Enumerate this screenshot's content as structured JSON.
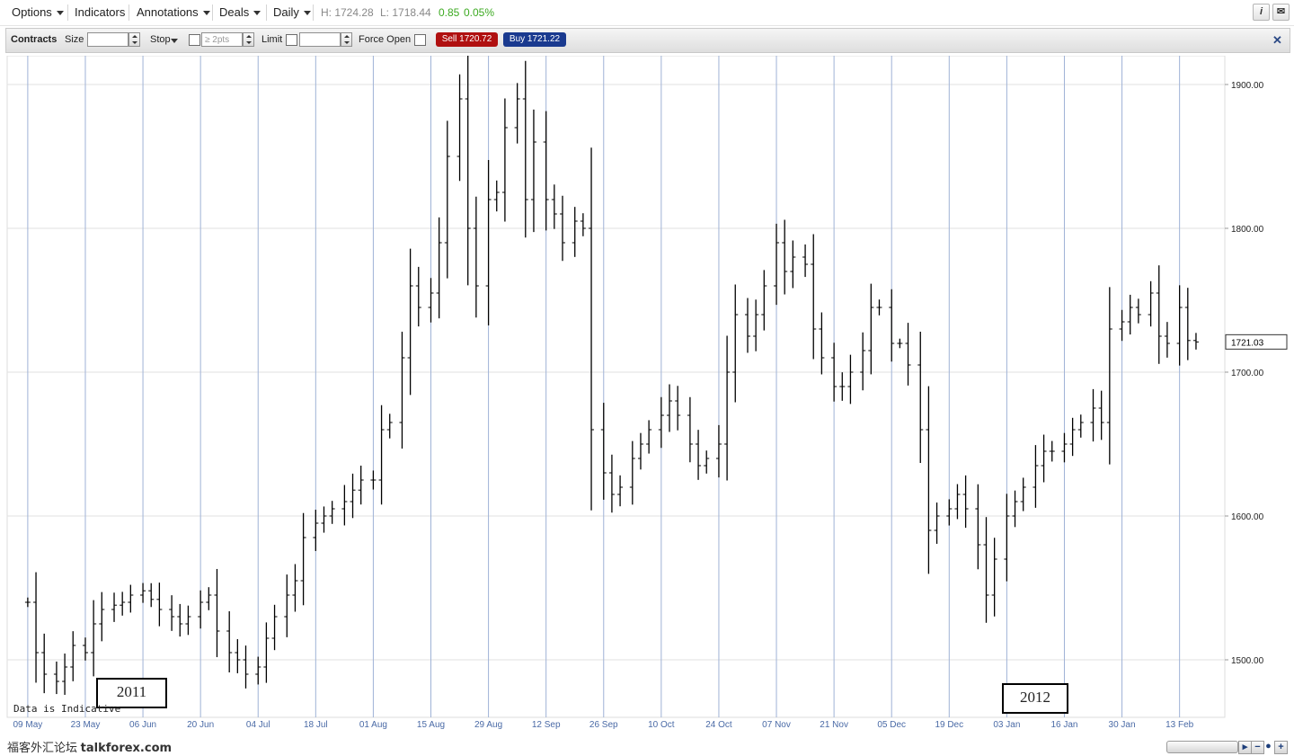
{
  "menubar": {
    "options": "Options",
    "indicators": "Indicators",
    "annotations": "Annotations",
    "deals": "Deals",
    "period": "Daily",
    "high": "H: 1724.28",
    "low": "L: 1718.44",
    "change": "0.85",
    "change_pct": "0.05%"
  },
  "toolbar": {
    "contracts": "Contracts",
    "size": "Size",
    "stop": "Stop",
    "stop_placeholder": "≥ 2pts",
    "limit": "Limit",
    "force_open": "Force Open",
    "sell": "Sell 1720.72",
    "buy": "Buy 1721.22",
    "close": "✕"
  },
  "colors": {
    "sell": "#b01010",
    "buy": "#1a3a8f",
    "change": "#3caa21",
    "vline": "#9fb2d6",
    "hgrid": "#e2e2e2",
    "bar": "#000000"
  },
  "chart_data": {
    "type": "ohlc",
    "ylim": [
      1460,
      1920
    ],
    "y_ticks": [
      "1900.00",
      "1800.00",
      "1700.00",
      "1600.00",
      "1500.00"
    ],
    "x_ticks": [
      "09 May",
      "23 May",
      "06 Jun",
      "20 Jun",
      "04 Jul",
      "18 Jul",
      "01 Aug",
      "15 Aug",
      "29 Aug",
      "12 Sep",
      "26 Sep",
      "10 Oct",
      "24 Oct",
      "07 Nov",
      "21 Nov",
      "05 Dec",
      "19 Dec",
      "03 Jan",
      "16 Jan",
      "30 Jan",
      "13 Feb"
    ],
    "last_price": "1721.03",
    "year_labels": [
      "2011",
      "2012"
    ],
    "series": [
      {
        "x": "2011-05-09",
        "close": 1540
      },
      {
        "x": "2011-05-11",
        "close": 1505
      },
      {
        "x": "2011-05-13",
        "close": 1490
      },
      {
        "x": "2011-05-16",
        "close": 1485
      },
      {
        "x": "2011-05-18",
        "close": 1495
      },
      {
        "x": "2011-05-20",
        "close": 1510
      },
      {
        "x": "2011-05-23",
        "close": 1505
      },
      {
        "x": "2011-05-25",
        "close": 1525
      },
      {
        "x": "2011-05-27",
        "close": 1535
      },
      {
        "x": "2011-05-30",
        "close": 1538
      },
      {
        "x": "2011-06-01",
        "close": 1540
      },
      {
        "x": "2011-06-03",
        "close": 1545
      },
      {
        "x": "2011-06-06",
        "close": 1548
      },
      {
        "x": "2011-06-08",
        "close": 1542
      },
      {
        "x": "2011-06-10",
        "close": 1535
      },
      {
        "x": "2011-06-13",
        "close": 1530
      },
      {
        "x": "2011-06-15",
        "close": 1525
      },
      {
        "x": "2011-06-17",
        "close": 1530
      },
      {
        "x": "2011-06-20",
        "close": 1540
      },
      {
        "x": "2011-06-22",
        "close": 1545
      },
      {
        "x": "2011-06-24",
        "close": 1520
      },
      {
        "x": "2011-06-27",
        "close": 1505
      },
      {
        "x": "2011-06-29",
        "close": 1500
      },
      {
        "x": "2011-07-01",
        "close": 1490
      },
      {
        "x": "2011-07-04",
        "close": 1495
      },
      {
        "x": "2011-07-06",
        "close": 1515
      },
      {
        "x": "2011-07-08",
        "close": 1530
      },
      {
        "x": "2011-07-11",
        "close": 1545
      },
      {
        "x": "2011-07-13",
        "close": 1555
      },
      {
        "x": "2011-07-15",
        "close": 1585
      },
      {
        "x": "2011-07-18",
        "close": 1595
      },
      {
        "x": "2011-07-20",
        "close": 1600
      },
      {
        "x": "2011-07-22",
        "close": 1605
      },
      {
        "x": "2011-07-25",
        "close": 1610
      },
      {
        "x": "2011-07-27",
        "close": 1618
      },
      {
        "x": "2011-07-29",
        "close": 1625
      },
      {
        "x": "2011-08-01",
        "close": 1625
      },
      {
        "x": "2011-08-03",
        "close": 1660
      },
      {
        "x": "2011-08-05",
        "close": 1665
      },
      {
        "x": "2011-08-08",
        "close": 1710
      },
      {
        "x": "2011-08-10",
        "close": 1760
      },
      {
        "x": "2011-08-12",
        "close": 1745
      },
      {
        "x": "2011-08-15",
        "close": 1755
      },
      {
        "x": "2011-08-17",
        "close": 1790
      },
      {
        "x": "2011-08-19",
        "close": 1850
      },
      {
        "x": "2011-08-22",
        "close": 1890
      },
      {
        "x": "2011-08-24",
        "close": 1800
      },
      {
        "x": "2011-08-26",
        "close": 1760
      },
      {
        "x": "2011-08-29",
        "close": 1820
      },
      {
        "x": "2011-08-31",
        "close": 1825
      },
      {
        "x": "2011-09-02",
        "close": 1870
      },
      {
        "x": "2011-09-05",
        "close": 1890
      },
      {
        "x": "2011-09-07",
        "close": 1820
      },
      {
        "x": "2011-09-09",
        "close": 1860
      },
      {
        "x": "2011-09-12",
        "close": 1820
      },
      {
        "x": "2011-09-14",
        "close": 1810
      },
      {
        "x": "2011-09-16",
        "close": 1790
      },
      {
        "x": "2011-09-19",
        "close": 1805
      },
      {
        "x": "2011-09-21",
        "close": 1800
      },
      {
        "x": "2011-09-23",
        "close": 1660
      },
      {
        "x": "2011-09-26",
        "close": 1630
      },
      {
        "x": "2011-09-28",
        "close": 1615
      },
      {
        "x": "2011-09-30",
        "close": 1620
      },
      {
        "x": "2011-10-03",
        "close": 1640
      },
      {
        "x": "2011-10-05",
        "close": 1650
      },
      {
        "x": "2011-10-07",
        "close": 1660
      },
      {
        "x": "2011-10-10",
        "close": 1670
      },
      {
        "x": "2011-10-12",
        "close": 1680
      },
      {
        "x": "2011-10-14",
        "close": 1670
      },
      {
        "x": "2011-10-17",
        "close": 1650
      },
      {
        "x": "2011-10-19",
        "close": 1635
      },
      {
        "x": "2011-10-21",
        "close": 1640
      },
      {
        "x": "2011-10-24",
        "close": 1650
      },
      {
        "x": "2011-10-26",
        "close": 1700
      },
      {
        "x": "2011-10-28",
        "close": 1740
      },
      {
        "x": "2011-10-31",
        "close": 1725
      },
      {
        "x": "2011-11-02",
        "close": 1740
      },
      {
        "x": "2011-11-04",
        "close": 1760
      },
      {
        "x": "2011-11-07",
        "close": 1790
      },
      {
        "x": "2011-11-09",
        "close": 1770
      },
      {
        "x": "2011-11-11",
        "close": 1780
      },
      {
        "x": "2011-11-14",
        "close": 1775
      },
      {
        "x": "2011-11-16",
        "close": 1730
      },
      {
        "x": "2011-11-18",
        "close": 1710
      },
      {
        "x": "2011-11-21",
        "close": 1690
      },
      {
        "x": "2011-11-23",
        "close": 1690
      },
      {
        "x": "2011-11-25",
        "close": 1700
      },
      {
        "x": "2011-11-28",
        "close": 1715
      },
      {
        "x": "2011-11-30",
        "close": 1745
      },
      {
        "x": "2011-12-02",
        "close": 1745
      },
      {
        "x": "2011-12-05",
        "close": 1720
      },
      {
        "x": "2011-12-07",
        "close": 1720
      },
      {
        "x": "2011-12-09",
        "close": 1705
      },
      {
        "x": "2011-12-12",
        "close": 1660
      },
      {
        "x": "2011-12-14",
        "close": 1590
      },
      {
        "x": "2011-12-16",
        "close": 1600
      },
      {
        "x": "2011-12-19",
        "close": 1605
      },
      {
        "x": "2011-12-21",
        "close": 1615
      },
      {
        "x": "2011-12-23",
        "close": 1605
      },
      {
        "x": "2011-12-26",
        "close": 1580
      },
      {
        "x": "2011-12-28",
        "close": 1545
      },
      {
        "x": "2011-12-30",
        "close": 1570
      },
      {
        "x": "2012-01-02",
        "close": 1600
      },
      {
        "x": "2012-01-04",
        "close": 1610
      },
      {
        "x": "2012-01-06",
        "close": 1620
      },
      {
        "x": "2012-01-09",
        "close": 1635
      },
      {
        "x": "2012-01-11",
        "close": 1645
      },
      {
        "x": "2012-01-13",
        "close": 1645
      },
      {
        "x": "2012-01-16",
        "close": 1650
      },
      {
        "x": "2012-01-18",
        "close": 1660
      },
      {
        "x": "2012-01-20",
        "close": 1665
      },
      {
        "x": "2012-01-23",
        "close": 1675
      },
      {
        "x": "2012-01-25",
        "close": 1665
      },
      {
        "x": "2012-01-27",
        "close": 1730
      },
      {
        "x": "2012-01-30",
        "close": 1735
      },
      {
        "x": "2012-02-01",
        "close": 1745
      },
      {
        "x": "2012-02-03",
        "close": 1740
      },
      {
        "x": "2012-02-06",
        "close": 1755
      },
      {
        "x": "2012-02-08",
        "close": 1725
      },
      {
        "x": "2012-02-10",
        "close": 1720
      },
      {
        "x": "2012-02-13",
        "close": 1745
      },
      {
        "x": "2012-02-15",
        "close": 1722
      },
      {
        "x": "2012-02-17",
        "close": 1721
      }
    ]
  },
  "footer": {
    "watermark_cn": "福客外汇论坛",
    "watermark_site": "talkforex.com",
    "indicative": "Data is Indicative"
  }
}
